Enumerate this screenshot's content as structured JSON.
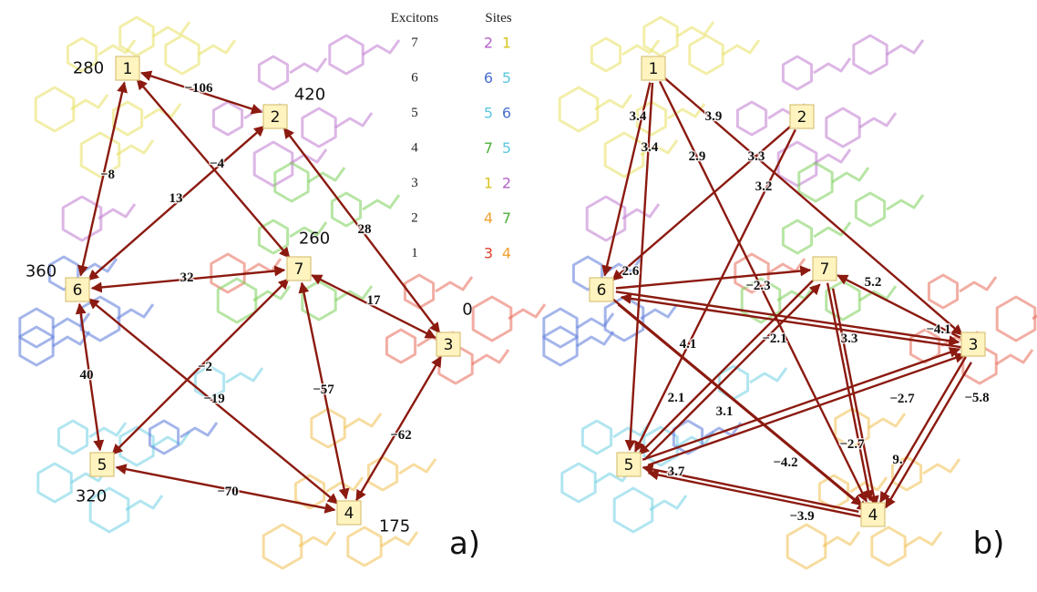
{
  "panel_a": {
    "tag": "a)",
    "nodes": [
      {
        "label": "1",
        "energy": "280"
      },
      {
        "label": "2",
        "energy": "420"
      },
      {
        "label": "3",
        "energy": "0"
      },
      {
        "label": "4",
        "energy": "175"
      },
      {
        "label": "5",
        "energy": "320"
      },
      {
        "label": "6",
        "energy": "360"
      },
      {
        "label": "7",
        "energy": "260"
      }
    ],
    "couplings": [
      "−106",
      "−8",
      "−4",
      "13",
      "28",
      "32",
      "17",
      "−2",
      "−19",
      "−57",
      "−62",
      "40",
      "−70"
    ]
  },
  "panel_b": {
    "tag": "b)",
    "nodes": [
      "1",
      "2",
      "3",
      "4",
      "5",
      "6",
      "7"
    ],
    "rates": [
      "3.4",
      "3.4",
      "2.9",
      "3.9",
      "3.3",
      "3.2",
      "2.6",
      "−2.3",
      "5.2",
      "4.1",
      "3.3",
      "−2.1",
      "2.1",
      "3.1",
      "−2.7",
      "−4.1",
      "−5.8",
      "−2.7",
      "9.",
      "3.7",
      "−4.2",
      "−3.9"
    ]
  },
  "legend": {
    "headers": [
      "Excitons",
      "Sites"
    ],
    "rows": [
      {
        "exciton": "7",
        "sites": [
          {
            "text": "2",
            "color": "#b45fc8"
          },
          {
            "text": "1",
            "color": "#d9c520"
          }
        ]
      },
      {
        "exciton": "6",
        "sites": [
          {
            "text": "6",
            "color": "#4a6fd0"
          },
          {
            "text": "5",
            "color": "#5cc8e0"
          }
        ]
      },
      {
        "exciton": "5",
        "sites": [
          {
            "text": "5",
            "color": "#5cc8e0"
          },
          {
            "text": "6",
            "color": "#4a6fd0"
          }
        ]
      },
      {
        "exciton": "4",
        "sites": [
          {
            "text": "7",
            "color": "#4caf3a"
          },
          {
            "text": "5",
            "color": "#5cc8e0"
          }
        ]
      },
      {
        "exciton": "3",
        "sites": [
          {
            "text": "1",
            "color": "#d9c520"
          },
          {
            "text": "2",
            "color": "#b45fc8"
          }
        ]
      },
      {
        "exciton": "2",
        "sites": [
          {
            "text": "4",
            "color": "#f0a030"
          },
          {
            "text": "7",
            "color": "#4caf3a"
          }
        ]
      },
      {
        "exciton": "1",
        "sites": [
          {
            "text": "3",
            "color": "#e0402a"
          },
          {
            "text": "4",
            "color": "#f0a030"
          }
        ]
      }
    ]
  }
}
